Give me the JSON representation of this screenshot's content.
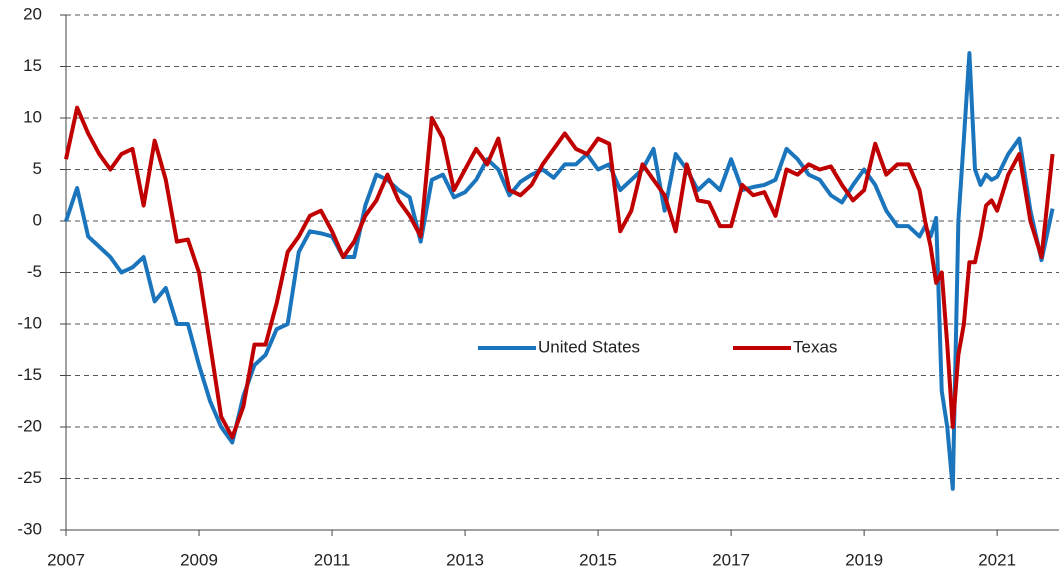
{
  "chart_data": {
    "type": "line",
    "x": [
      2007,
      2007.167,
      2007.333,
      2007.5,
      2007.667,
      2007.833,
      2008,
      2008.167,
      2008.333,
      2008.5,
      2008.667,
      2008.833,
      2009,
      2009.167,
      2009.333,
      2009.5,
      2009.667,
      2009.833,
      2010,
      2010.167,
      2010.333,
      2010.5,
      2010.667,
      2010.833,
      2011,
      2011.167,
      2011.333,
      2011.5,
      2011.667,
      2011.833,
      2012,
      2012.167,
      2012.333,
      2012.5,
      2012.667,
      2012.833,
      2013,
      2013.167,
      2013.333,
      2013.5,
      2013.667,
      2013.833,
      2014,
      2014.167,
      2014.333,
      2014.5,
      2014.667,
      2014.833,
      2015,
      2015.167,
      2015.333,
      2015.5,
      2015.667,
      2015.833,
      2016,
      2016.167,
      2016.333,
      2016.5,
      2016.667,
      2016.833,
      2017,
      2017.167,
      2017.333,
      2017.5,
      2017.667,
      2017.833,
      2018,
      2018.167,
      2018.333,
      2018.5,
      2018.667,
      2018.833,
      2019,
      2019.167,
      2019.333,
      2019.5,
      2019.667,
      2019.833,
      2019.917,
      2020,
      2020.083,
      2020.167,
      2020.25,
      2020.333,
      2020.417,
      2020.5,
      2020.583,
      2020.667,
      2020.75,
      2020.833,
      2020.917,
      2021,
      2021.167,
      2021.333,
      2021.5,
      2021.667,
      2021.833
    ],
    "series": [
      {
        "name": "United States",
        "color": "#1b75bc",
        "values": [
          0,
          3.2,
          -1.5,
          -2.5,
          -3.5,
          -5,
          -4.5,
          -3.5,
          -7.8,
          -6.5,
          -10,
          -10,
          -14,
          -17.5,
          -20,
          -21.5,
          -17,
          -14,
          -13,
          -10.5,
          -10,
          -3,
          -1,
          -1.2,
          -1.5,
          -3.5,
          -3.5,
          1.5,
          4.5,
          4,
          3,
          2.3,
          -2,
          4,
          4.5,
          2.3,
          2.8,
          4,
          6,
          5,
          2.5,
          3.8,
          4.5,
          5,
          4.2,
          5.5,
          5.5,
          6.5,
          5,
          5.5,
          3,
          4,
          5,
          7,
          1,
          6.5,
          5,
          3,
          4,
          3,
          6,
          3,
          3.3,
          3.5,
          4,
          7,
          6,
          4.5,
          4,
          2.5,
          1.8,
          3.5,
          5,
          3.5,
          1,
          -0.5,
          -0.5,
          -1.5,
          -0.5,
          -1.5,
          0.3,
          -16.5,
          -20,
          -26,
          0,
          8,
          16.3,
          5,
          3.5,
          4.5,
          4,
          4.3,
          6.5,
          8,
          1,
          -3.8,
          1.2
        ]
      },
      {
        "name": "Texas",
        "color": "#c00000",
        "values": [
          6,
          11,
          8.5,
          6.5,
          5,
          6.5,
          7,
          1.5,
          7.8,
          4,
          -2,
          -1.8,
          -5,
          -12,
          -19,
          -21,
          -18,
          -12,
          -12,
          -8,
          -3,
          -1.5,
          0.5,
          1,
          -1,
          -3.5,
          -2,
          0.5,
          2,
          4.5,
          2,
          0.5,
          -1.5,
          10,
          8,
          3,
          5,
          7,
          5.5,
          8,
          3,
          2.5,
          3.5,
          5.5,
          7,
          8.5,
          7,
          6.5,
          8,
          7.5,
          -1,
          1,
          5.5,
          4,
          2.5,
          -1,
          5.5,
          2,
          1.8,
          -0.5,
          -0.5,
          3.5,
          2.5,
          2.8,
          0.5,
          5,
          4.5,
          5.5,
          5,
          5.3,
          3.5,
          2,
          3,
          7.5,
          4.5,
          5.5,
          5.5,
          3,
          0,
          -2.5,
          -6,
          -5,
          -12,
          -20,
          -13,
          -10,
          -4,
          -4,
          -1.5,
          1.5,
          2,
          1,
          4.5,
          6.5,
          0,
          -3.5,
          6.5
        ]
      }
    ],
    "xlim": [
      2007,
      2021.93
    ],
    "xticks": [
      2007,
      2009,
      2011,
      2013,
      2015,
      2017,
      2019,
      2021
    ],
    "ylim": [
      -30,
      20
    ],
    "yticks": [
      -30,
      -25,
      -20,
      -15,
      -10,
      -5,
      0,
      5,
      10,
      15,
      20
    ],
    "grid": true,
    "legend": "center"
  }
}
